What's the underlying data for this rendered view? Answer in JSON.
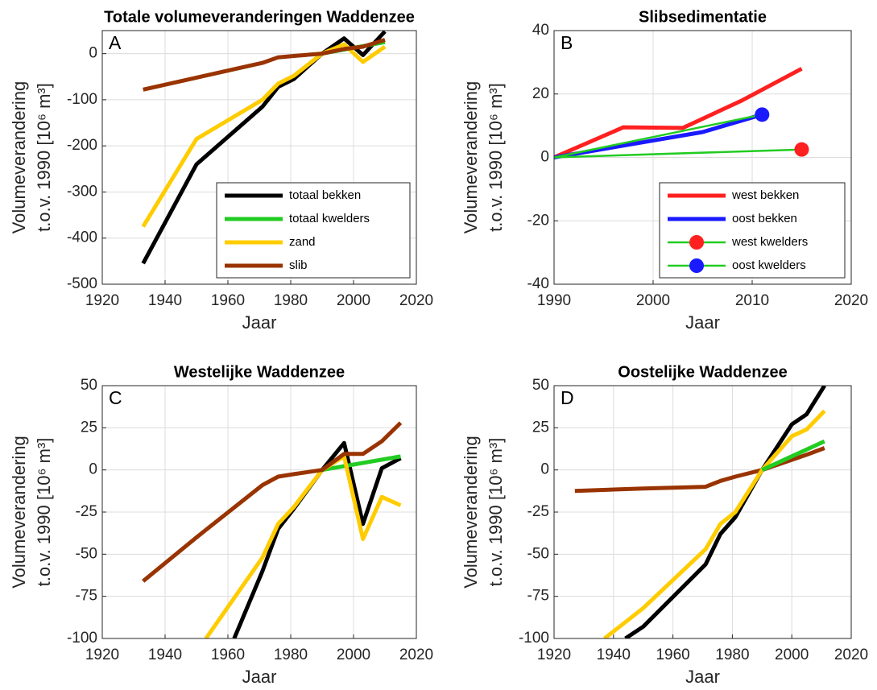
{
  "chart_data": [
    {
      "type": "line",
      "title": "Totale volumeveranderingen Waddenzee",
      "panel_label": "A",
      "xlabel": "Jaar",
      "ylabel": [
        "Volumeverandering",
        "t.o.v. 1990 [10⁶ m³]"
      ],
      "xlim": [
        1920,
        2020
      ],
      "xticks": [
        1920,
        1940,
        1960,
        1980,
        2000,
        2020
      ],
      "ylim": [
        -500,
        50
      ],
      "yticks": [
        -500,
        -400,
        -300,
        -200,
        -100,
        0
      ],
      "grid": true,
      "legend": "lower right",
      "series": [
        {
          "name": "totaal bekken",
          "color": "#000000",
          "linewidth": 5,
          "x": [
            1933,
            1950,
            1971,
            1976,
            1981,
            1990,
            1997,
            2003,
            2010
          ],
          "values": [
            -455,
            -240,
            -115,
            -72,
            -55,
            0,
            33,
            -3,
            48
          ]
        },
        {
          "name": "totaal kwelders",
          "color": "#22cc22",
          "linewidth": 5,
          "x": [
            1990,
            2010
          ],
          "values": [
            0,
            25
          ]
        },
        {
          "name": "zand",
          "color": "#ffcc00",
          "linewidth": 5,
          "x": [
            1933,
            1950,
            1971,
            1976,
            1981,
            1990,
            1997,
            2003,
            2010
          ],
          "values": [
            -375,
            -185,
            -100,
            -65,
            -48,
            0,
            20,
            -18,
            15
          ]
        },
        {
          "name": "slib",
          "color": "#993300",
          "linewidth": 5,
          "x": [
            1933,
            1950,
            1971,
            1976,
            1981,
            1990,
            1997,
            2003,
            2010
          ],
          "values": [
            -78,
            -52,
            -20,
            -8,
            -5,
            0,
            10,
            15,
            30
          ]
        }
      ]
    },
    {
      "type": "line",
      "title": "Slibsedimentatie",
      "panel_label": "B",
      "xlabel": "Jaar",
      "ylabel": [
        "Volumeverandering",
        "t.o.v. 1990 [10⁶ m³]"
      ],
      "xlim": [
        1990,
        2020
      ],
      "xticks": [
        1990,
        2000,
        2010,
        2020
      ],
      "ylim": [
        -40,
        40
      ],
      "yticks": [
        -40,
        -20,
        0,
        20,
        40
      ],
      "grid": true,
      "legend": "lower right",
      "series": [
        {
          "name": "west bekken",
          "color": "#ff2020",
          "linewidth": 5,
          "x": [
            1990,
            1997,
            2003,
            2009,
            2015
          ],
          "values": [
            0,
            9.5,
            9.3,
            18,
            28
          ]
        },
        {
          "name": "oost bekken",
          "color": "#1a1aff",
          "linewidth": 5,
          "x": [
            1990,
            2005,
            2011
          ],
          "values": [
            0,
            8,
            13.5
          ]
        },
        {
          "name": "west kwelders",
          "color": "#22cc22",
          "marker_color": "#ff2020",
          "linewidth": 2.5,
          "x": [
            1990,
            2015
          ],
          "values": [
            0,
            2.5
          ]
        },
        {
          "name": "oost kwelders",
          "color": "#22cc22",
          "marker_color": "#1a1aff",
          "linewidth": 2.5,
          "x": [
            1990,
            2011
          ],
          "values": [
            0,
            13.5
          ]
        }
      ]
    },
    {
      "type": "line",
      "title": "Westelijke Waddenzee",
      "panel_label": "C",
      "xlabel": "Jaar",
      "ylabel": [
        "Volumeverandering",
        "t.o.v. 1990 [10⁶ m³]"
      ],
      "xlim": [
        1920,
        2020
      ],
      "xticks": [
        1920,
        1940,
        1960,
        1980,
        2000,
        2020
      ],
      "ylim": [
        -100,
        50
      ],
      "yticks": [
        -100,
        -75,
        -50,
        -25,
        0,
        25,
        50
      ],
      "grid": true,
      "series": [
        {
          "color": "#000000",
          "linewidth": 5,
          "x": [
            1962,
            1971,
            1976,
            1981,
            1990,
            1997,
            2003,
            2009,
            2015
          ],
          "values": [
            -100,
            -60,
            -35,
            -23,
            0,
            16,
            -32,
            1,
            7
          ]
        },
        {
          "color": "#22cc22",
          "linewidth": 5,
          "x": [
            1990,
            2015
          ],
          "values": [
            0,
            8
          ]
        },
        {
          "color": "#ffcc00",
          "linewidth": 5,
          "x": [
            1953,
            1971,
            1976,
            1981,
            1990,
            1997,
            2003,
            2009,
            2015
          ],
          "values": [
            -100,
            -52,
            -32,
            -22,
            0,
            8,
            -41,
            -16,
            -21
          ]
        },
        {
          "color": "#993300",
          "linewidth": 5,
          "x": [
            1933,
            1950,
            1971,
            1976,
            1981,
            1990,
            1997,
            2003,
            2009,
            2015
          ],
          "values": [
            -66,
            -40,
            -9,
            -4,
            -2.5,
            0,
            9.5,
            9.5,
            17,
            28
          ]
        }
      ]
    },
    {
      "type": "line",
      "title": "Oostelijke Waddenzee",
      "panel_label": "D",
      "xlabel": "Jaar",
      "ylabel": [
        "Volumeverandering",
        "t.o.v. 1990 [10⁶ m³]"
      ],
      "xlim": [
        1920,
        2020
      ],
      "xticks": [
        1920,
        1940,
        1960,
        1980,
        2000,
        2020
      ],
      "ylim": [
        -100,
        50
      ],
      "yticks": [
        -100,
        -75,
        -50,
        -25,
        0,
        25,
        50
      ],
      "grid": true,
      "series": [
        {
          "color": "#993300",
          "linewidth": 5,
          "x": [
            1927,
            1950,
            1971,
            1976,
            1981,
            1990,
            2000,
            2005,
            2011
          ],
          "values": [
            -12.5,
            -11,
            -10,
            -6.5,
            -4,
            0,
            6,
            9,
            13
          ]
        },
        {
          "color": "#000000",
          "linewidth": 5,
          "x": [
            1944,
            1950,
            1971,
            1976,
            1981,
            1990,
            2000,
            2005,
            2011
          ],
          "values": [
            -100,
            -93,
            -56,
            -38,
            -28,
            0,
            27,
            33,
            50
          ]
        },
        {
          "color": "#ffcc00",
          "linewidth": 5,
          "x": [
            1937,
            1950,
            1971,
            1976,
            1981,
            1990,
            2000,
            2005,
            2011
          ],
          "values": [
            -100,
            -82,
            -47,
            -32,
            -25,
            0,
            20,
            24,
            35
          ]
        },
        {
          "color": "#22cc22",
          "linewidth": 5,
          "x": [
            1990,
            2011
          ],
          "values": [
            0,
            17
          ]
        }
      ]
    }
  ]
}
